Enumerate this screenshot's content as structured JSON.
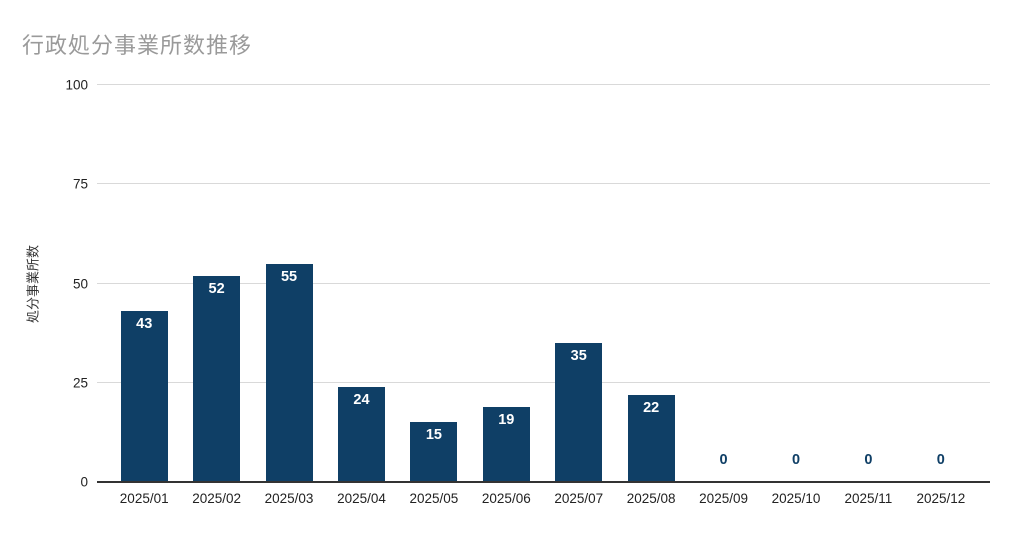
{
  "chart_data": {
    "type": "bar",
    "title": "行政処分事業所数推移",
    "xlabel": "",
    "ylabel": "処分事業所数",
    "categories": [
      "2025/01",
      "2025/02",
      "2025/03",
      "2025/04",
      "2025/05",
      "2025/06",
      "2025/07",
      "2025/08",
      "2025/09",
      "2025/10",
      "2025/11",
      "2025/12"
    ],
    "values": [
      43,
      52,
      55,
      24,
      15,
      19,
      35,
      22,
      0,
      0,
      0,
      0
    ],
    "ylim": [
      0,
      100
    ],
    "yticks": [
      0,
      25,
      50,
      75,
      100
    ],
    "grid": true,
    "legend": false,
    "colors": {
      "bar": "#0f3f66",
      "bar_value_label": "#ffffff",
      "zero_value_label": "#0f3f66",
      "title": "#9a9a9a",
      "gridline": "#d9d9d9",
      "axis_line": "#333333",
      "tick_label": "#222222"
    }
  }
}
